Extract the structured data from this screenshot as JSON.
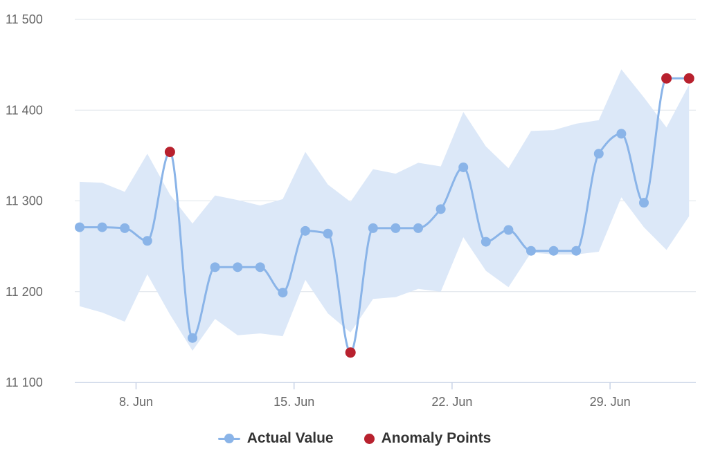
{
  "colors": {
    "band": "#dce8f8",
    "line": "#8ab4e8",
    "anomaly": "#b8212e",
    "grid": "#dde3ea",
    "axis": "#c8d3e6",
    "text": "#666666"
  },
  "legend": {
    "actual_label": "Actual Value",
    "anomaly_label": "Anomaly Points"
  },
  "chart_data": {
    "type": "line",
    "x": [
      "2025-06-06",
      "2025-06-07",
      "2025-06-08",
      "2025-06-09",
      "2025-06-10",
      "2025-06-11",
      "2025-06-12",
      "2025-06-13",
      "2025-06-14",
      "2025-06-15",
      "2025-06-16",
      "2025-06-17",
      "2025-06-18",
      "2025-06-19",
      "2025-06-20",
      "2025-06-21",
      "2025-06-22",
      "2025-06-23",
      "2025-06-24",
      "2025-06-25",
      "2025-06-26",
      "2025-06-27",
      "2025-06-28",
      "2025-06-29",
      "2025-06-30",
      "2025-07-01",
      "2025-07-02",
      "2025-07-03"
    ],
    "ylim": [
      11100,
      11500
    ],
    "yticks": [
      11100,
      11200,
      11300,
      11400,
      11500
    ],
    "ytick_labels": [
      "11 100",
      "11 200",
      "11 300",
      "11 400",
      "11 500"
    ],
    "xticks": [
      "2025-06-08",
      "2025-06-15",
      "2025-06-22",
      "2025-06-29"
    ],
    "xtick_labels": [
      "8. Jun",
      "15. Jun",
      "22. Jun",
      "29. Jun"
    ],
    "grid": true,
    "legend_position": "bottom-center",
    "series": [
      {
        "name": "Actual Value",
        "kind": "line",
        "values": [
          11271,
          11271,
          11270,
          11256,
          11354,
          11149,
          11227,
          11227,
          11227,
          11199,
          11267,
          11264,
          11133,
          11270,
          11270,
          11270,
          11291,
          11337,
          11255,
          11268,
          11245,
          11245,
          11245,
          11352,
          11374,
          11298,
          11435,
          11435
        ]
      },
      {
        "name": "",
        "kind": "range",
        "lower": [
          11184,
          11177,
          11167,
          11219,
          11175,
          11135,
          11170,
          11152,
          11154,
          11151,
          11213,
          11176,
          11155,
          11192,
          11194,
          11203,
          11200,
          11260,
          11223,
          11205,
          11243,
          11241,
          11241,
          11244,
          11304,
          11271,
          11246,
          11283
        ],
        "upper": [
          11321,
          11320,
          11310,
          11352,
          11307,
          11275,
          11306,
          11301,
          11295,
          11302,
          11354,
          11318,
          11299,
          11335,
          11330,
          11342,
          11338,
          11398,
          11360,
          11336,
          11377,
          11378,
          11385,
          11389,
          11445,
          11414,
          11381,
          11428
        ]
      },
      {
        "name": "Anomaly Points",
        "kind": "scatter",
        "x": [
          "2025-06-10",
          "2025-06-18",
          "2025-07-02",
          "2025-07-03"
        ],
        "values": [
          11354,
          11133,
          11435,
          11435
        ]
      }
    ]
  }
}
